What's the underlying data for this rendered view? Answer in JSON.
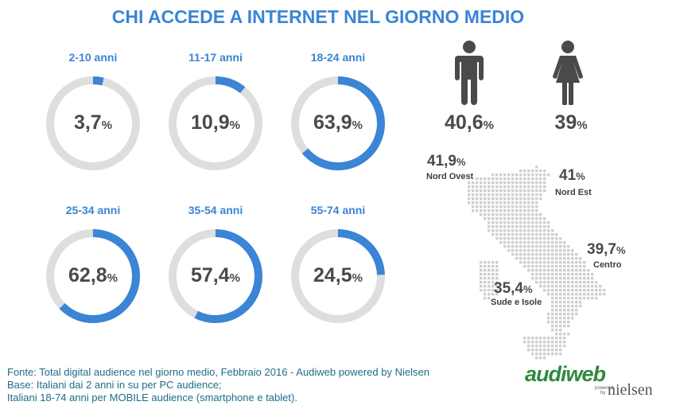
{
  "title": "CHI ACCEDE A INTERNET NEL GIORNO MEDIO",
  "pct_symbol": "%",
  "colors": {
    "accent": "#3b84d6",
    "track": "#dedede",
    "text": "#4a4a4a",
    "footer": "#1e6c8a",
    "logo_green": "#2f8a3f"
  },
  "chart_data": {
    "type": "donut",
    "categories": [
      "2-10 anni",
      "11-17 anni",
      "18-24 anni",
      "25-34 anni",
      "35-54 anni",
      "55-74 anni"
    ],
    "values": [
      3.7,
      10.9,
      63.9,
      62.8,
      57.4,
      24.5
    ],
    "value_labels": [
      "3,7",
      "10,9",
      "63,9",
      "62,8",
      "57,4",
      "24,5"
    ],
    "unit": "%"
  },
  "gender": [
    {
      "icon": "man-icon",
      "value": "40,6"
    },
    {
      "icon": "woman-icon",
      "value": "39"
    }
  ],
  "regions": [
    {
      "name": "Nord Ovest",
      "value": "41,9"
    },
    {
      "name": "Nord Est",
      "value": "41"
    },
    {
      "name": "Centro",
      "value": "39,7"
    },
    {
      "name": "Sude e Isole",
      "value": "35,4"
    }
  ],
  "footer": {
    "line1": "Fonte: Total digital audience nel giorno medio, Febbraio 2016 - Audiweb powered by Nielsen",
    "line2": "Base: Italiani dai 2 anni in su per PC audience;",
    "line3": "Italiani 18-74 anni per MOBILE audience (smartphone e tablet)."
  },
  "logo": {
    "audiweb": "audiweb",
    "powered": "powered",
    "by": "by",
    "nielsen": "nielsen"
  }
}
